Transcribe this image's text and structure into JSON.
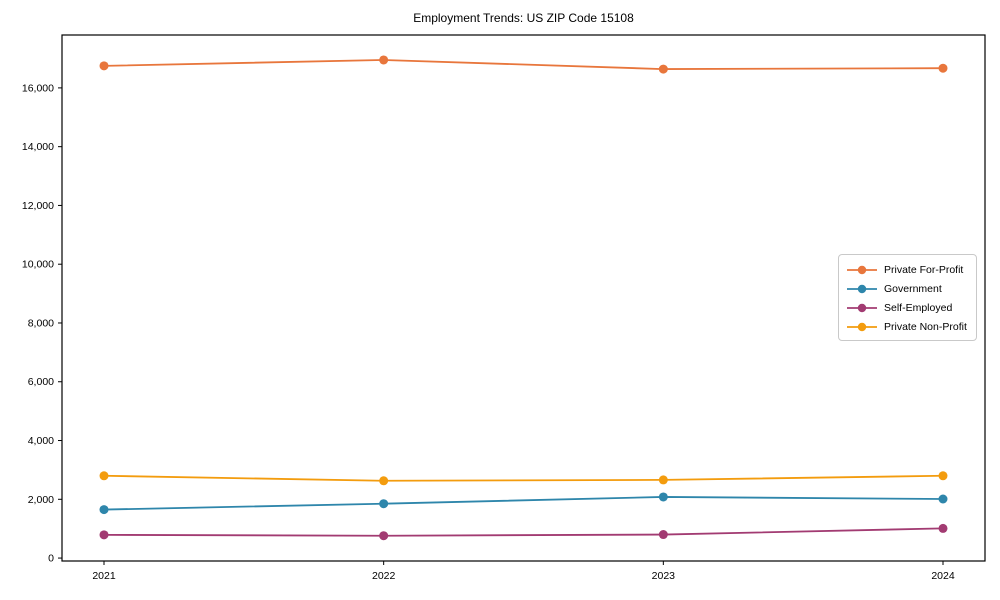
{
  "chart_data": {
    "type": "line",
    "title": "Employment Trends: US ZIP Code 15108",
    "x": [
      "2021",
      "2022",
      "2023",
      "2024"
    ],
    "series": [
      {
        "name": "Private For-Profit",
        "color": "#E8763C",
        "values": [
          16750,
          16950,
          16640,
          16670
        ]
      },
      {
        "name": "Government",
        "color": "#2E86AB",
        "values": [
          1650,
          1850,
          2080,
          2010
        ]
      },
      {
        "name": "Self-Employed",
        "color": "#A23B72",
        "values": [
          790,
          760,
          800,
          1010
        ]
      },
      {
        "name": "Private Non-Profit",
        "color": "#F39C0E",
        "values": [
          2800,
          2630,
          2660,
          2800
        ]
      }
    ],
    "yticks": [
      0,
      2000,
      4000,
      6000,
      8000,
      10000,
      12000,
      14000,
      16000
    ],
    "ytick_labels": [
      "0",
      "2,000",
      "4,000",
      "6,000",
      "8,000",
      "10,000",
      "12,000",
      "14,000",
      "16,000"
    ],
    "ylim": [
      -100,
      17800
    ],
    "grid": false,
    "legend_position": "center-right",
    "axes_box": true,
    "text_color": "#000000",
    "spine_color": "#000000"
  }
}
